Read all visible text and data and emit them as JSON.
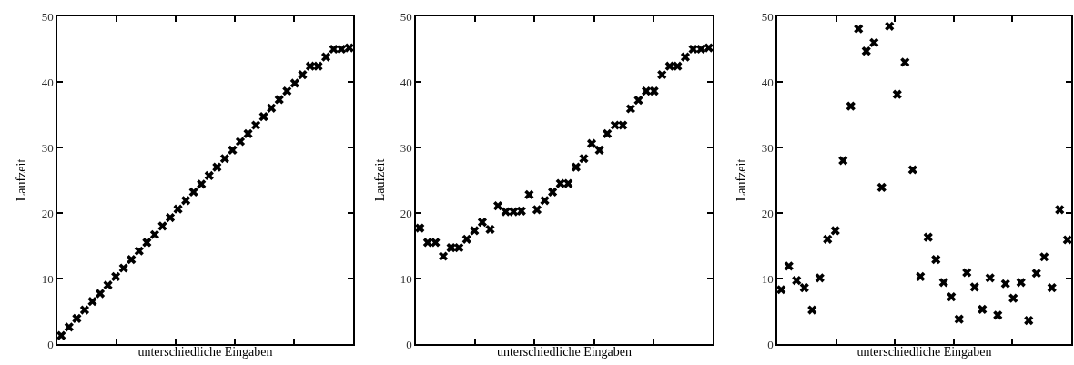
{
  "chart_data": [
    {
      "type": "scatter",
      "xlabel": "unterschiedliche Eingaben",
      "ylabel": "Laufzeit",
      "color": "#000000",
      "marker": "cross",
      "tick_labels": "y",
      "ylim": [
        0,
        50
      ],
      "yticks": [
        0,
        10,
        20,
        30,
        40,
        50
      ],
      "categories": [
        null,
        null,
        null,
        null,
        null,
        null,
        null,
        null,
        null,
        null,
        null,
        null,
        null,
        null,
        null,
        null,
        null,
        null,
        null,
        null,
        null,
        null,
        null,
        null,
        null,
        null,
        null,
        null,
        null,
        null,
        null,
        null,
        null,
        null,
        null,
        null,
        null,
        null
      ],
      "values": [
        1.3,
        2.6,
        3.9,
        5.2,
        6.5,
        7.7,
        9.0,
        10.3,
        11.6,
        12.9,
        14.2,
        15.5,
        16.7,
        18.0,
        19.3,
        20.6,
        21.9,
        23.2,
        24.4,
        25.7,
        27.0,
        28.3,
        29.6,
        30.9,
        32.1,
        33.4,
        34.7,
        36.0,
        37.3,
        38.6,
        39.8,
        41.1,
        42.4,
        42.4,
        43.8,
        45.0,
        45.0,
        45.2
      ]
    },
    {
      "type": "scatter",
      "xlabel": "unterschiedliche Eingaben",
      "ylabel": "Laufzeit",
      "color": "#000000",
      "marker": "cross",
      "tick_labels": "y",
      "ylim": [
        0,
        50
      ],
      "yticks": [
        0,
        10,
        20,
        30,
        40,
        50
      ],
      "categories": [
        null,
        null,
        null,
        null,
        null,
        null,
        null,
        null,
        null,
        null,
        null,
        null,
        null,
        null,
        null,
        null,
        null,
        null,
        null,
        null,
        null,
        null,
        null,
        null,
        null,
        null,
        null,
        null,
        null,
        null,
        null,
        null,
        null,
        null,
        null,
        null,
        null,
        null
      ],
      "values": [
        17.7,
        15.5,
        15.5,
        13.4,
        14.7,
        14.7,
        16.0,
        17.3,
        18.6,
        17.5,
        21.1,
        20.2,
        20.2,
        20.3,
        22.8,
        20.5,
        21.9,
        23.2,
        24.5,
        24.5,
        27.0,
        28.3,
        30.6,
        29.6,
        32.1,
        33.4,
        33.4,
        35.9,
        37.2,
        38.6,
        38.6,
        41.1,
        42.4,
        42.4,
        43.8,
        45.0,
        45.0,
        45.2
      ]
    },
    {
      "type": "scatter",
      "xlabel": "unterschiedliche Eingaben",
      "ylabel": "Laufzeit",
      "color": "#000000",
      "marker": "cross",
      "tick_labels": "y",
      "ylim": [
        0,
        50
      ],
      "yticks": [
        0,
        10,
        20,
        30,
        40,
        50
      ],
      "categories": [
        null,
        null,
        null,
        null,
        null,
        null,
        null,
        null,
        null,
        null,
        null,
        null,
        null,
        null,
        null,
        null,
        null,
        null,
        null,
        null,
        null,
        null,
        null,
        null,
        null,
        null,
        null,
        null,
        null,
        null,
        null,
        null,
        null,
        null,
        null,
        null,
        null,
        null
      ],
      "values": [
        8.3,
        11.9,
        9.7,
        8.6,
        5.2,
        10.1,
        16.0,
        17.3,
        28.0,
        36.3,
        48.1,
        44.7,
        46.0,
        23.9,
        48.5,
        38.1,
        43.0,
        26.6,
        10.3,
        16.3,
        12.9,
        9.4,
        7.2,
        3.8,
        10.9,
        8.7,
        5.3,
        10.1,
        4.4,
        9.2,
        7.0,
        9.4,
        3.6,
        10.8,
        13.3,
        8.6,
        20.5,
        15.9
      ]
    }
  ]
}
